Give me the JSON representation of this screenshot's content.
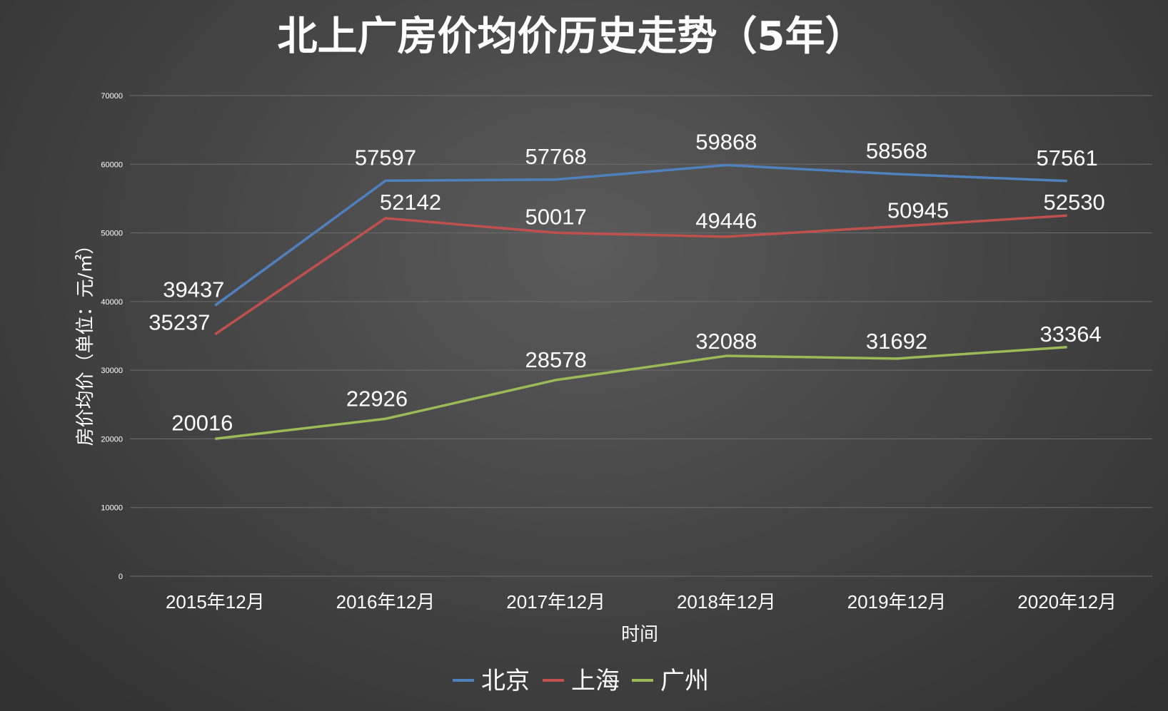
{
  "chart_data": {
    "type": "line",
    "title": "北上广房价均价历史走势（5年）",
    "xlabel": "时间",
    "ylabel": "房价均价（单位：元/㎡）",
    "ylim": [
      0,
      70000
    ],
    "yticks": [
      0,
      10000,
      20000,
      30000,
      40000,
      50000,
      60000,
      70000
    ],
    "grid": true,
    "legend_position": "bottom",
    "categories": [
      "2015年12月",
      "2016年12月",
      "2017年12月",
      "2018年12月",
      "2019年12月",
      "2020年12月"
    ],
    "series": [
      {
        "name": "北京",
        "color": "#4f81bd",
        "values": [
          39437,
          57597,
          57768,
          59868,
          58568,
          57561
        ]
      },
      {
        "name": "上海",
        "color": "#c0504d",
        "values": [
          35237,
          52142,
          50017,
          49446,
          50945,
          52530
        ]
      },
      {
        "name": "广州",
        "color": "#9bbb59",
        "values": [
          20016,
          22926,
          28578,
          32088,
          31692,
          33364
        ]
      }
    ]
  }
}
